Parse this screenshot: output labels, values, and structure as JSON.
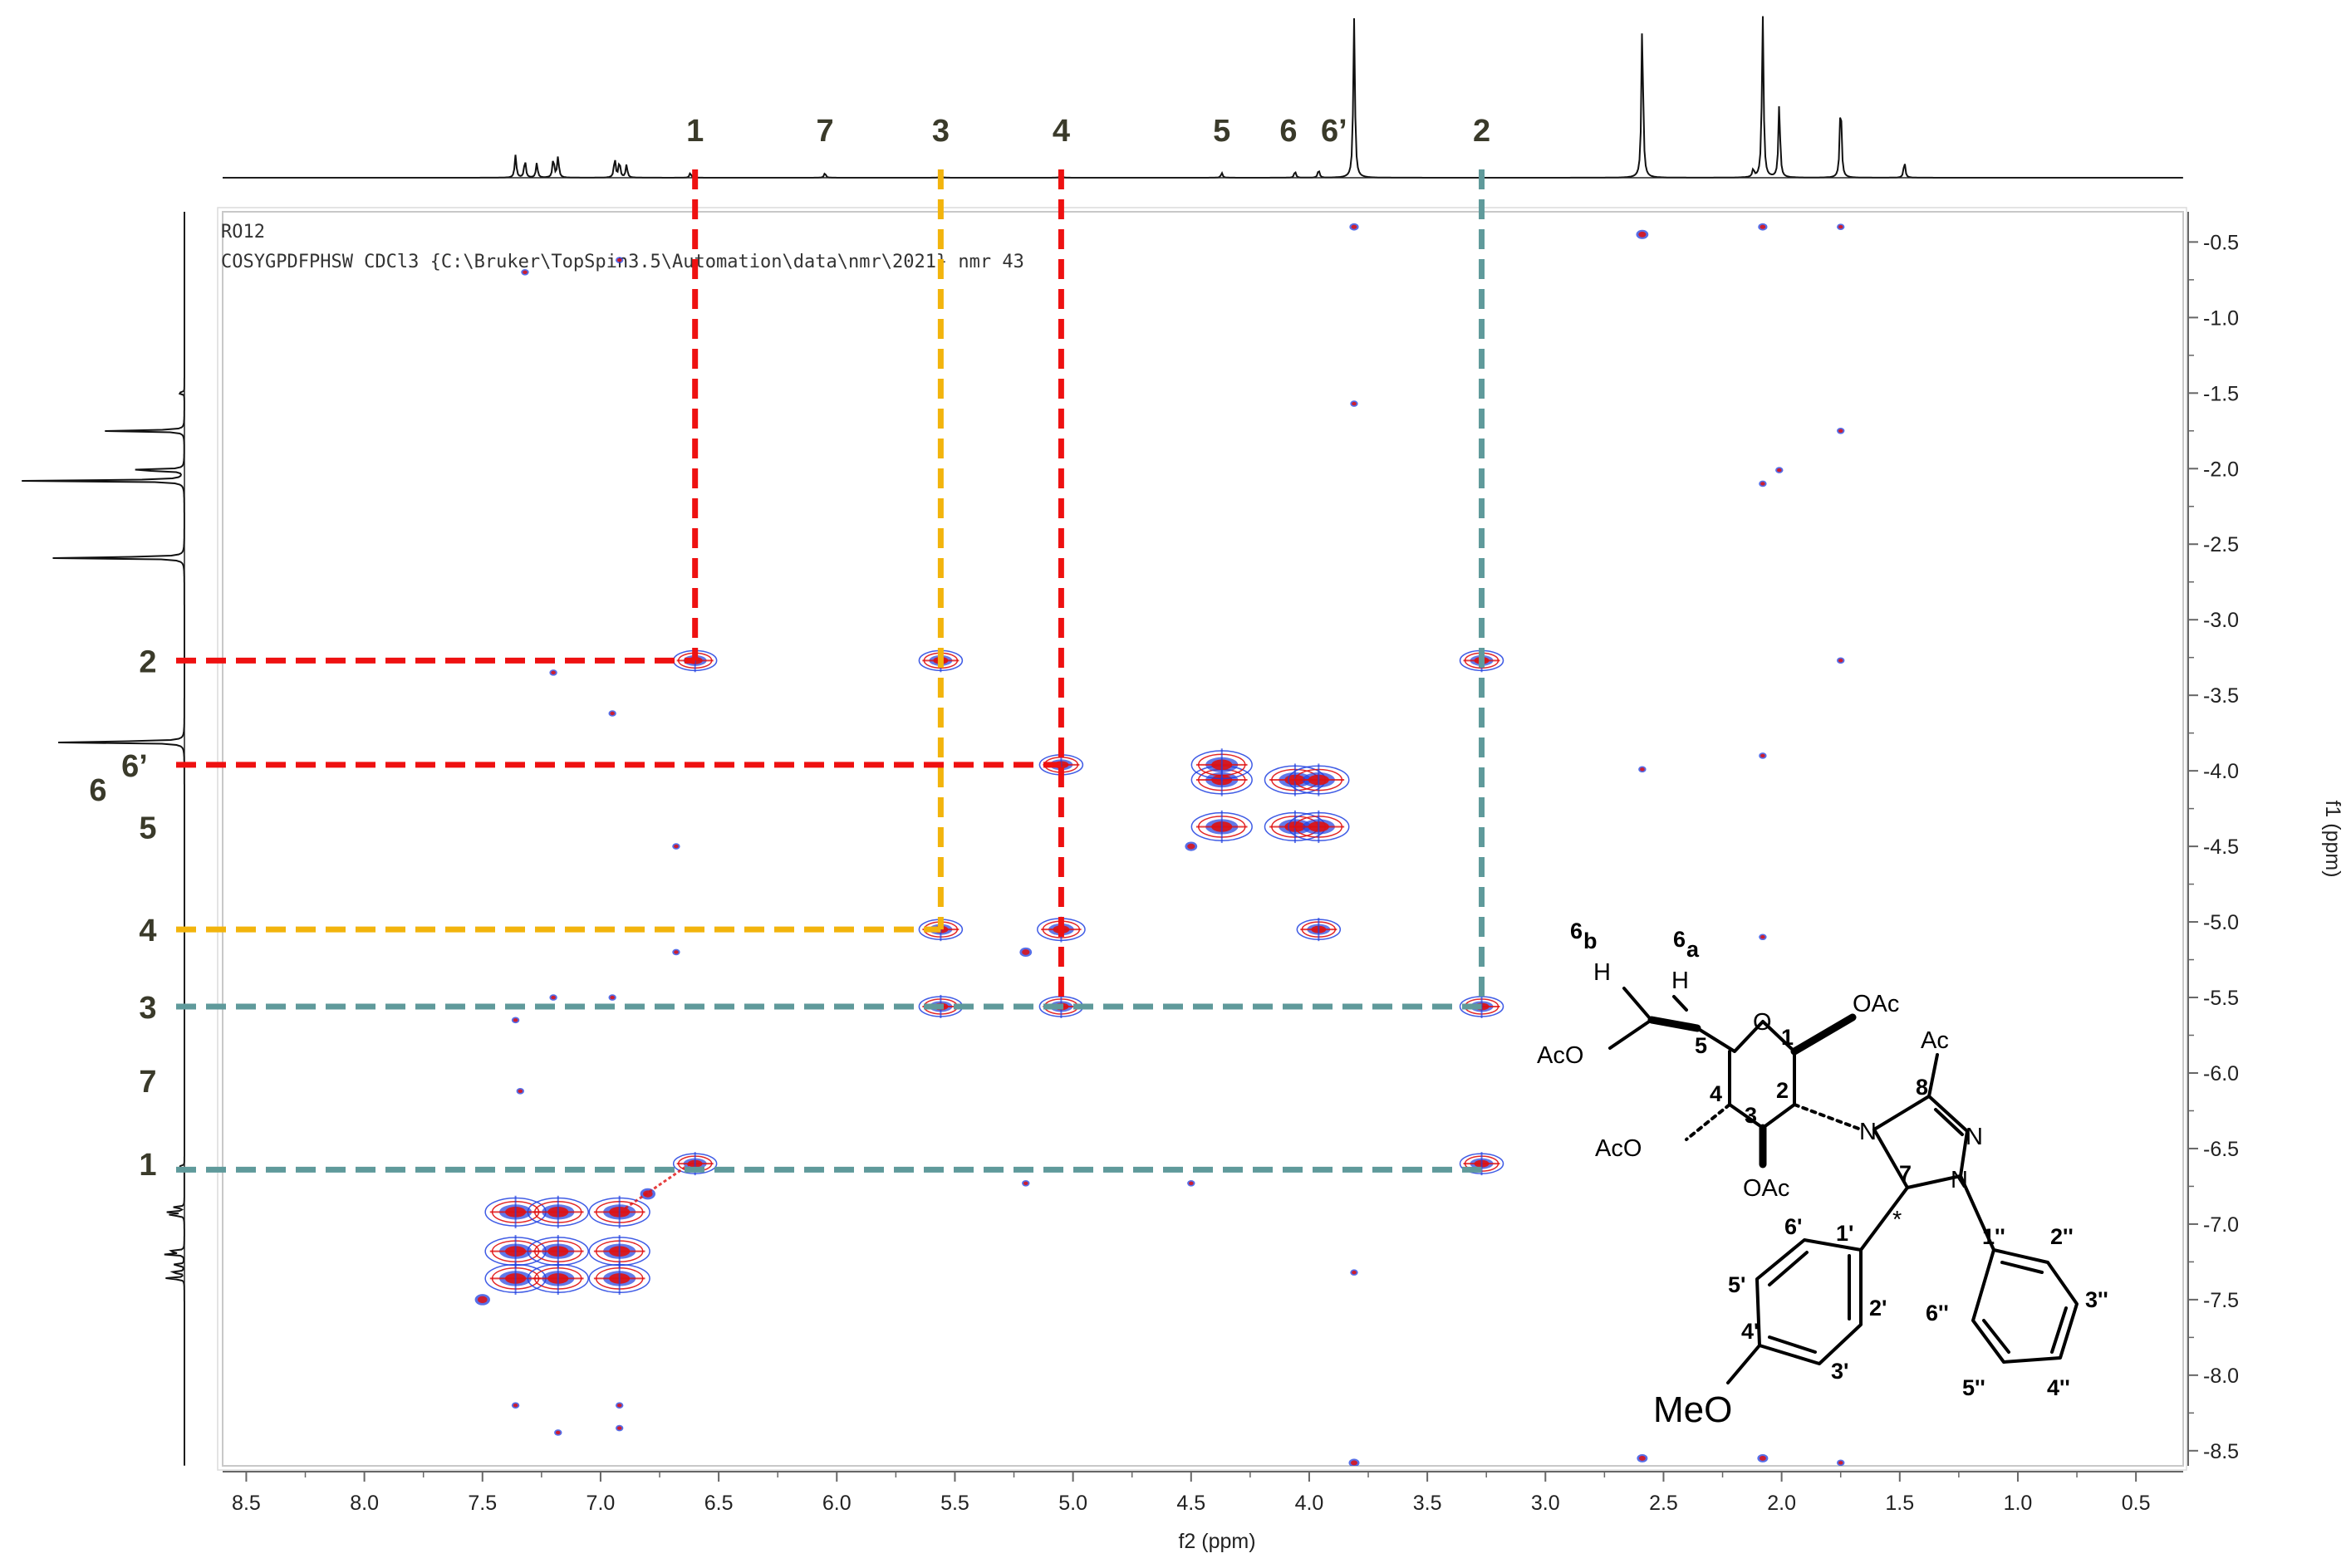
{
  "chart_data": {
    "type": "heatmap",
    "subtype": "2D COSY NMR spectrum",
    "title": "RO12",
    "subtitle": "COSYGPDFPHSW CDCl3 {C:\\Bruker\\TopSpin3.5\\Automation\\data\\nmr\\2021} nmr 43",
    "xlabel": "f2 (ppm)",
    "ylabel": "f1 (ppm)",
    "xlim": [
      8.6,
      0.3
    ],
    "ylim": [
      0.3,
      8.6
    ],
    "x_ticks": [
      "8.5",
      "8.0",
      "7.5",
      "7.0",
      "6.5",
      "6.0",
      "5.5",
      "5.0",
      "4.5",
      "4.0",
      "3.5",
      "3.0",
      "2.5",
      "2.0",
      "1.5",
      "1.0",
      "0.5"
    ],
    "y_ticks": [
      "0.5",
      "1.0",
      "1.5",
      "2.0",
      "2.5",
      "3.0",
      "3.5",
      "4.0",
      "4.5",
      "5.0",
      "5.5",
      "6.0",
      "6.5",
      "7.0",
      "7.5",
      "8.0",
      "8.5"
    ],
    "contour_colors": {
      "positive": "#1f3fe0",
      "negative": "#e01010"
    },
    "top_projection_peaks": [
      {
        "x": 7.36,
        "h": 0.14
      },
      {
        "x": 7.32,
        "h": 0.11
      },
      {
        "x": 7.27,
        "h": 0.09
      },
      {
        "x": 7.2,
        "h": 0.12
      },
      {
        "x": 7.18,
        "h": 0.13
      },
      {
        "x": 6.94,
        "h": 0.12
      },
      {
        "x": 6.92,
        "h": 0.1
      },
      {
        "x": 6.89,
        "h": 0.08
      },
      {
        "x": 6.62,
        "h": 0.03
      },
      {
        "x": 6.05,
        "h": 0.03
      },
      {
        "x": 5.56,
        "h": 0.02
      },
      {
        "x": 5.05,
        "h": 0.02
      },
      {
        "x": 4.37,
        "h": 0.03
      },
      {
        "x": 4.06,
        "h": 0.04
      },
      {
        "x": 3.96,
        "h": 0.05
      },
      {
        "x": 3.81,
        "h": 0.98
      },
      {
        "x": 2.59,
        "h": 0.97
      },
      {
        "x": 2.08,
        "h": 1.0
      },
      {
        "x": 2.01,
        "h": 0.46
      },
      {
        "x": 1.75,
        "h": 0.5
      },
      {
        "x": 1.48,
        "h": 0.1
      },
      {
        "x": 2.12,
        "h": 0.05
      }
    ],
    "left_projection_peaks": [
      {
        "y": 1.5,
        "h": 0.05
      },
      {
        "y": 1.75,
        "h": 0.5
      },
      {
        "y": 2.01,
        "h": 0.46
      },
      {
        "y": 2.08,
        "h": 1.0
      },
      {
        "y": 2.59,
        "h": 0.97
      },
      {
        "y": 3.81,
        "h": 0.98
      },
      {
        "y": 6.62,
        "h": 0.05
      },
      {
        "y": 6.89,
        "h": 0.08
      },
      {
        "y": 6.92,
        "h": 0.1
      },
      {
        "y": 6.94,
        "h": 0.12
      },
      {
        "y": 7.18,
        "h": 0.13
      },
      {
        "y": 7.2,
        "h": 0.12
      },
      {
        "y": 7.27,
        "h": 0.09
      },
      {
        "y": 7.32,
        "h": 0.11
      },
      {
        "y": 7.36,
        "h": 0.14
      }
    ],
    "cross_peaks": [
      {
        "x": 6.6,
        "y": 3.27,
        "s": 1.0
      },
      {
        "x": 3.27,
        "y": 6.6,
        "s": 1.0
      },
      {
        "x": 5.56,
        "y": 3.27,
        "s": 1.0
      },
      {
        "x": 3.27,
        "y": 5.56,
        "s": 1.0
      },
      {
        "x": 5.56,
        "y": 5.05,
        "s": 1.0
      },
      {
        "x": 5.05,
        "y": 5.56,
        "s": 1.0
      },
      {
        "x": 5.05,
        "y": 3.96,
        "s": 1.0
      },
      {
        "x": 3.96,
        "y": 5.05,
        "s": 1.0
      },
      {
        "x": 5.05,
        "y": 5.05,
        "s": 1.1
      },
      {
        "x": 5.56,
        "y": 5.56,
        "s": 1.0
      },
      {
        "x": 3.27,
        "y": 3.27,
        "s": 1.0
      },
      {
        "x": 6.6,
        "y": 6.6,
        "s": 1.0
      },
      {
        "x": 5.2,
        "y": 5.2,
        "s": 0.6
      },
      {
        "x": 4.37,
        "y": 4.06,
        "s": 1.4
      },
      {
        "x": 4.37,
        "y": 4.37,
        "s": 1.4
      },
      {
        "x": 4.06,
        "y": 4.06,
        "s": 1.4
      },
      {
        "x": 4.06,
        "y": 4.37,
        "s": 1.4
      },
      {
        "x": 3.96,
        "y": 4.06,
        "s": 1.4
      },
      {
        "x": 3.96,
        "y": 4.37,
        "s": 1.4
      },
      {
        "x": 4.37,
        "y": 3.96,
        "s": 1.4
      },
      {
        "x": 4.5,
        "y": 4.5,
        "s": 0.6
      },
      {
        "x": 7.36,
        "y": 6.92,
        "s": 1.4
      },
      {
        "x": 7.36,
        "y": 7.18,
        "s": 1.4
      },
      {
        "x": 7.36,
        "y": 7.36,
        "s": 1.4
      },
      {
        "x": 7.18,
        "y": 6.92,
        "s": 1.4
      },
      {
        "x": 7.18,
        "y": 7.18,
        "s": 1.4
      },
      {
        "x": 7.18,
        "y": 7.36,
        "s": 1.4
      },
      {
        "x": 6.92,
        "y": 6.92,
        "s": 1.4
      },
      {
        "x": 6.92,
        "y": 7.18,
        "s": 1.4
      },
      {
        "x": 6.92,
        "y": 7.36,
        "s": 1.4
      },
      {
        "x": 7.5,
        "y": 7.5,
        "s": 0.8
      },
      {
        "x": 6.8,
        "y": 6.8,
        "s": 0.8
      },
      {
        "x": 3.81,
        "y": 0.4,
        "s": 0.4
      },
      {
        "x": 2.59,
        "y": 0.45,
        "s": 0.6
      },
      {
        "x": 2.08,
        "y": 0.4,
        "s": 0.4
      },
      {
        "x": 1.75,
        "y": 0.4,
        "s": 0.3
      },
      {
        "x": 3.81,
        "y": 8.58,
        "s": 0.5
      },
      {
        "x": 2.59,
        "y": 8.55,
        "s": 0.5
      },
      {
        "x": 2.08,
        "y": 8.55,
        "s": 0.5
      },
      {
        "x": 1.75,
        "y": 8.58,
        "s": 0.3
      },
      {
        "x": 1.75,
        "y": 3.27,
        "s": 0.3
      },
      {
        "x": 2.59,
        "y": 3.99,
        "s": 0.3
      },
      {
        "x": 2.08,
        "y": 3.9,
        "s": 0.3
      },
      {
        "x": 2.08,
        "y": 5.1,
        "s": 0.3
      },
      {
        "x": 2.08,
        "y": 2.1,
        "s": 0.3
      },
      {
        "x": 2.01,
        "y": 2.01,
        "s": 0.3
      },
      {
        "x": 1.75,
        "y": 1.75,
        "s": 0.3
      },
      {
        "x": 3.81,
        "y": 1.57,
        "s": 0.3
      },
      {
        "x": 7.36,
        "y": 8.2,
        "s": 0.3
      },
      {
        "x": 6.92,
        "y": 8.2,
        "s": 0.3
      },
      {
        "x": 6.92,
        "y": 8.35,
        "s": 0.3
      },
      {
        "x": 7.18,
        "y": 8.38,
        "s": 0.3
      },
      {
        "x": 6.92,
        "y": 0.62,
        "s": 0.3
      },
      {
        "x": 7.32,
        "y": 0.7,
        "s": 0.3
      },
      {
        "x": 6.95,
        "y": 3.62,
        "s": 0.3
      },
      {
        "x": 7.2,
        "y": 3.35,
        "s": 0.3
      },
      {
        "x": 6.95,
        "y": 5.5,
        "s": 0.3
      },
      {
        "x": 7.2,
        "y": 5.5,
        "s": 0.3
      },
      {
        "x": 6.68,
        "y": 4.5,
        "s": 0.3
      },
      {
        "x": 6.68,
        "y": 5.2,
        "s": 0.3
      },
      {
        "x": 7.36,
        "y": 5.65,
        "s": 0.3
      },
      {
        "x": 7.34,
        "y": 6.12,
        "s": 0.3
      },
      {
        "x": 5.2,
        "y": 6.73,
        "s": 0.3
      },
      {
        "x": 4.5,
        "y": 6.73,
        "s": 0.3
      },
      {
        "x": 3.81,
        "y": 7.32,
        "s": 0.3
      }
    ],
    "assignment_lines": [
      {
        "label": "1",
        "x": 6.6,
        "y": 3.27,
        "color": "#ee1111",
        "vertical": true,
        "horizontal": true
      },
      {
        "label": "3",
        "x": 5.56,
        "y": 5.05,
        "color": "#f2b40c",
        "vertical": true,
        "horizontal": true
      },
      {
        "label": "4",
        "x": 5.05,
        "y": 5.56,
        "color": "#ee1111",
        "vertical": true,
        "horizontal": false
      },
      {
        "label": "6'",
        "x": 5.05,
        "y": 3.96,
        "color": "#ee1111",
        "vertical": false,
        "horizontal": true
      },
      {
        "label": "2",
        "x": 3.27,
        "y": 5.56,
        "color": "#5f9a9b",
        "vertical": true,
        "horizontal": true
      },
      {
        "label": "1b",
        "x": 3.27,
        "y": 6.64,
        "color": "#5f9a9b",
        "vertical": false,
        "horizontal": true
      }
    ],
    "f2_peak_labels": [
      {
        "text": "1",
        "x": 6.6
      },
      {
        "text": "7",
        "x": 6.05
      },
      {
        "text": "3",
        "x": 5.56
      },
      {
        "text": "4",
        "x": 5.05
      },
      {
        "text": "5",
        "x": 4.37
      },
      {
        "text": "6",
        "x": 4.06
      },
      {
        "text": "6’",
        "x": 3.93
      },
      {
        "text": "2",
        "x": 3.27
      }
    ],
    "f1_peak_labels": [
      {
        "text": "2",
        "y": 3.27
      },
      {
        "text": "6’",
        "y": 3.96
      },
      {
        "text": "6",
        "y": 4.12
      },
      {
        "text": "5",
        "y": 4.37
      },
      {
        "text": "4",
        "y": 5.05
      },
      {
        "text": "3",
        "y": 5.56
      },
      {
        "text": "7",
        "y": 6.05
      },
      {
        "text": "1",
        "y": 6.6
      }
    ]
  },
  "structure": {
    "oac1": "OAc",
    "oac3": "OAc",
    "oac4": "AcO",
    "oac6": "AcO",
    "ring_o": "O",
    "ac": "Ac",
    "n4": "N",
    "n2": "N",
    "n1": "N",
    "meo": "MeO",
    "star": "*",
    "h6b": "H",
    "h6a": "H",
    "label6b": "6",
    "sub6b": "b",
    "label6a": "6",
    "sub6a": "a",
    "num1": "1",
    "num2": "2",
    "num3": "3",
    "num4": "4",
    "num5": "5",
    "num7": "7",
    "num8": "8",
    "num1p": "1'",
    "num2p": "2'",
    "num3p": "3'",
    "num4p": "4'",
    "num5p": "5'",
    "num6p": "6'",
    "num1pp": "1''",
    "num2pp": "2''",
    "num3pp": "3''",
    "num4pp": "4''",
    "num5pp": "5''",
    "num6pp": "6''"
  }
}
